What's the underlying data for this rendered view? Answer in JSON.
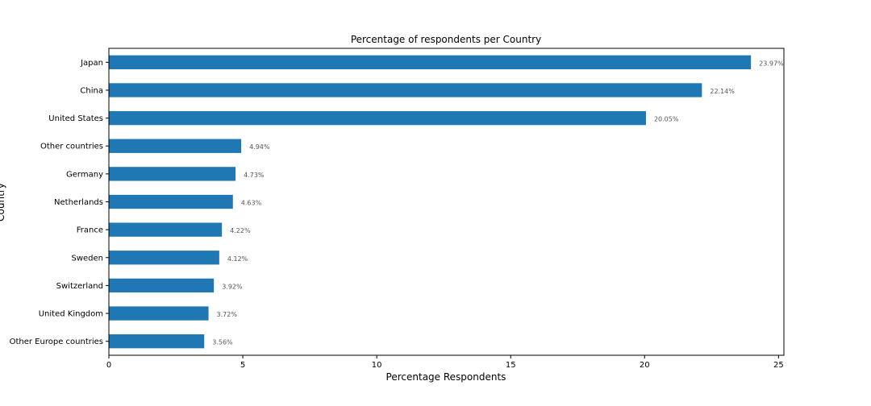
{
  "chart_data": {
    "type": "bar",
    "orientation": "horizontal",
    "title": "Percentage of respondents per Country",
    "xlabel": "Percentage Respondents",
    "ylabel": "Country",
    "xlim": [
      0,
      25.2
    ],
    "xticks": [
      0,
      5,
      10,
      15,
      20,
      25
    ],
    "grid": false,
    "bar_color": "#1f77b4",
    "categories": [
      "Japan",
      "China",
      "United States",
      "Other countries",
      "Germany",
      "Netherlands",
      "France",
      "Sweden",
      "Switzerland",
      "United Kingdom",
      "Other Europe countries"
    ],
    "values": [
      23.97,
      22.14,
      20.05,
      4.94,
      4.73,
      4.63,
      4.22,
      4.12,
      3.92,
      3.72,
      3.56
    ],
    "value_labels": [
      "23.97%",
      "22.14%",
      "20.05%",
      "4.94%",
      "4.73%",
      "4.63%",
      "4.22%",
      "4.12%",
      "3.92%",
      "3.72%",
      "3.56%"
    ]
  }
}
